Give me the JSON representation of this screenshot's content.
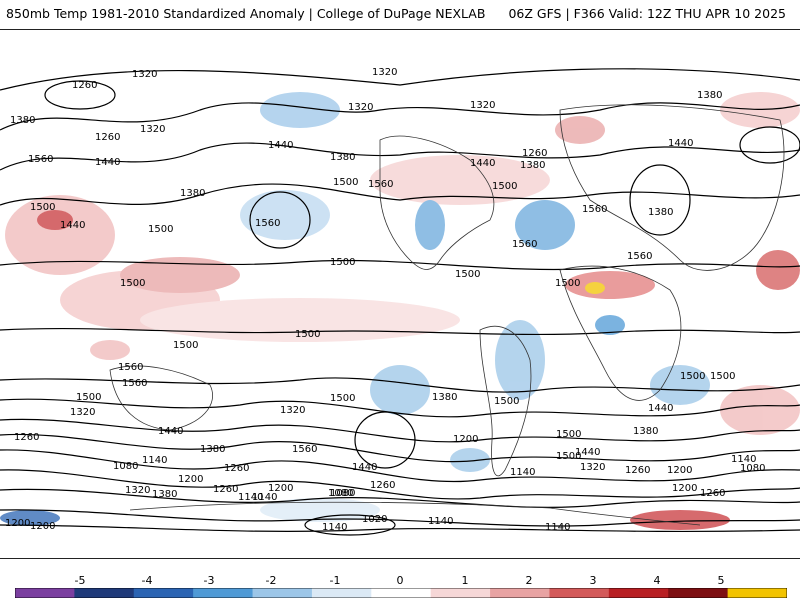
{
  "header": {
    "title_left": "850mb Temp 1981-2010 Standardized Anomaly | College of DuPage NEXLAB",
    "title_right": "06Z GFS | F366 Valid: 12Z THU APR 10 2025"
  },
  "contour_labels": [
    "1320",
    "1260",
    "1380",
    "1320",
    "1320",
    "1320",
    "1380",
    "1260",
    "1320",
    "1440",
    "1440",
    "1380",
    "1440",
    "1260",
    "1560",
    "1440",
    "1380",
    "1380",
    "1500",
    "1560",
    "1500",
    "1560",
    "1380",
    "1560",
    "1500",
    "1440",
    "1500",
    "1500",
    "1560",
    "1560",
    "1500",
    "1500",
    "1500",
    "1500",
    "1500",
    "1500",
    "1560",
    "1560",
    "1500",
    "1380",
    "1500",
    "1500",
    "1440",
    "1320",
    "1320",
    "1500",
    "1440",
    "1380",
    "1260",
    "1440",
    "1380",
    "1200",
    "1200",
    "1260",
    "1140",
    "1080",
    "1140",
    "1200",
    "1260",
    "1200",
    "1080",
    "1260",
    "1200",
    "1140",
    "1080",
    "1020",
    "1140",
    "1140",
    "1140",
    "1320",
    "1380",
    "1440",
    "1140",
    "1080",
    "1260",
    "1320",
    "1200",
    "1560",
    "1500",
    "1260",
    "1200",
    "1500",
    "1140"
  ],
  "colorbar": {
    "ticks": [
      "-5",
      "-4",
      "-3",
      "-2",
      "-1",
      "0",
      "1",
      "2",
      "3",
      "4",
      "5"
    ],
    "colors": [
      "#7b3fa0",
      "#1f3a7a",
      "#2b64b3",
      "#4f9ad6",
      "#9cc6e8",
      "#dbe9f5",
      "#ffffff",
      "#f6d7d7",
      "#e8a3a3",
      "#d35a5a",
      "#b81f23",
      "#7d0f12",
      "#f2c300"
    ]
  }
}
